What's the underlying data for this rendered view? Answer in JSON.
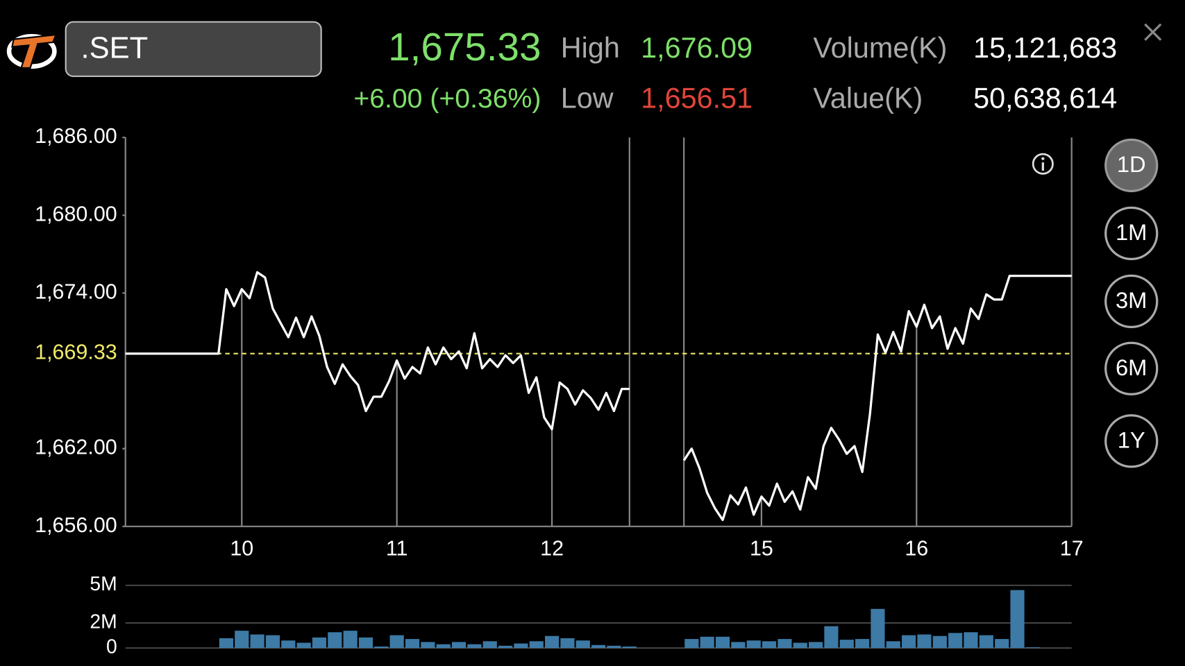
{
  "header": {
    "symbol": ".SET",
    "last": "1,675.33",
    "change": "+6.00 (+0.36%)",
    "high_label": "High",
    "high": "1,676.09",
    "low_label": "Low",
    "low": "1,656.51",
    "volume_label": "Volume(K)",
    "volume": "15,121,683",
    "value_label": "Value(K)",
    "value": "50,638,614"
  },
  "periods": [
    "1D",
    "1M",
    "3M",
    "6M",
    "1Y"
  ],
  "selected_period": "1D",
  "chart_data": [
    {
      "type": "line",
      "color": "#ffffff",
      "grid": true,
      "xlim": [
        9.25,
        17
      ],
      "xticks": [
        10,
        11,
        12,
        15,
        16,
        17
      ],
      "ylim": [
        1656,
        1686
      ],
      "yticks": [
        {
          "value": 1656,
          "label": "1,656.00"
        },
        {
          "value": 1662,
          "label": "1,662.00"
        },
        {
          "value": 1674,
          "label": "1,674.00"
        },
        {
          "value": 1680,
          "label": "1,680.00"
        },
        {
          "value": 1686,
          "label": "1,686.00"
        }
      ],
      "reference_line": {
        "value": 1669.33,
        "label": "1,669.33",
        "color": "#f0ea6a"
      },
      "sessions": [
        {
          "x": [
            9.25,
            9.85,
            9.9,
            9.95,
            10,
            10.05,
            10.1,
            10.15,
            10.2,
            10.25,
            10.3,
            10.35,
            10.4,
            10.45,
            10.5,
            10.55,
            10.6,
            10.65,
            10.7,
            10.75,
            10.8,
            10.85,
            10.9,
            10.95,
            11,
            11.05,
            11.1,
            11.15,
            11.2,
            11.25,
            11.3,
            11.35,
            11.4,
            11.45,
            11.5,
            11.55,
            11.6,
            11.65,
            11.7,
            11.75,
            11.8,
            11.85,
            11.9,
            11.95,
            12,
            12.05,
            12.1,
            12.15,
            12.2,
            12.25,
            12.3,
            12.35,
            12.4,
            12.45,
            12.5
          ],
          "values": [
            1669.33,
            1669.33,
            1674.3,
            1673.0,
            1674.3,
            1673.6,
            1675.6,
            1675.2,
            1672.8,
            1671.7,
            1670.6,
            1672.1,
            1670.6,
            1672.2,
            1670.7,
            1668.3,
            1667.0,
            1668.5,
            1667.6,
            1666.9,
            1664.9,
            1666.0,
            1666.0,
            1667.2,
            1668.8,
            1667.4,
            1668.3,
            1667.8,
            1669.8,
            1668.5,
            1669.8,
            1668.9,
            1669.5,
            1668.2,
            1670.9,
            1668.2,
            1668.9,
            1668.3,
            1669.2,
            1668.6,
            1669.2,
            1666.3,
            1667.5,
            1664.4,
            1663.5,
            1667.1,
            1666.6,
            1665.4,
            1666.5,
            1665.9,
            1665.0,
            1666.3,
            1664.9,
            1666.6,
            1666.6
          ]
        },
        {
          "x": [
            14.5,
            14.55,
            14.6,
            14.65,
            14.7,
            14.75,
            14.8,
            14.85,
            14.9,
            14.95,
            15,
            15.05,
            15.1,
            15.15,
            15.2,
            15.25,
            15.3,
            15.35,
            15.4,
            15.45,
            15.5,
            15.55,
            15.6,
            15.65,
            15.7,
            15.75,
            15.8,
            15.85,
            15.9,
            15.95,
            16,
            16.05,
            16.1,
            16.15,
            16.2,
            16.25,
            16.3,
            16.35,
            16.4,
            16.45,
            16.5,
            16.55,
            16.6,
            17
          ],
          "values": [
            1661.1,
            1662.0,
            1660.5,
            1658.6,
            1657.4,
            1656.5,
            1658.4,
            1657.7,
            1659.0,
            1656.9,
            1658.3,
            1657.6,
            1659.3,
            1657.9,
            1658.7,
            1657.3,
            1659.8,
            1658.9,
            1662.2,
            1663.6,
            1662.7,
            1661.6,
            1662.2,
            1660.2,
            1664.7,
            1670.8,
            1669.4,
            1671.0,
            1669.5,
            1672.6,
            1671.4,
            1673.1,
            1671.3,
            1672.2,
            1669.7,
            1671.3,
            1670.1,
            1672.8,
            1672.0,
            1673.9,
            1673.5,
            1673.5,
            1675.33,
            1675.33
          ]
        }
      ]
    },
    {
      "type": "bar",
      "color": "#3d7aa6",
      "ylim": [
        0,
        5000000
      ],
      "yticks": [
        0,
        {
          "value": 2000000,
          "label": "2M"
        },
        {
          "value": 5000000,
          "label": "5M"
        }
      ],
      "x": [
        9.9,
        10,
        10.1,
        10.2,
        10.3,
        10.4,
        10.5,
        10.6,
        10.7,
        10.8,
        10.9,
        11,
        11.1,
        11.2,
        11.3,
        11.4,
        11.5,
        11.6,
        11.7,
        11.8,
        11.9,
        12,
        12.1,
        12.2,
        12.3,
        12.4,
        12.5,
        14.55,
        14.65,
        14.75,
        14.85,
        14.95,
        15.05,
        15.15,
        15.25,
        15.35,
        15.45,
        15.55,
        15.65,
        15.75,
        15.85,
        15.95,
        16.05,
        16.15,
        16.25,
        16.35,
        16.45,
        16.55,
        16.65,
        16.75
      ],
      "values": [
        780000,
        1380000,
        1080000,
        1020000,
        600000,
        420000,
        840000,
        1260000,
        1380000,
        840000,
        120000,
        1020000,
        720000,
        480000,
        300000,
        480000,
        300000,
        540000,
        180000,
        360000,
        540000,
        960000,
        780000,
        600000,
        240000,
        180000,
        120000,
        720000,
        900000,
        900000,
        480000,
        600000,
        540000,
        720000,
        420000,
        480000,
        1740000,
        660000,
        720000,
        3120000,
        540000,
        1020000,
        1080000,
        960000,
        1200000,
        1260000,
        1020000,
        720000,
        4620000,
        60000
      ]
    }
  ]
}
